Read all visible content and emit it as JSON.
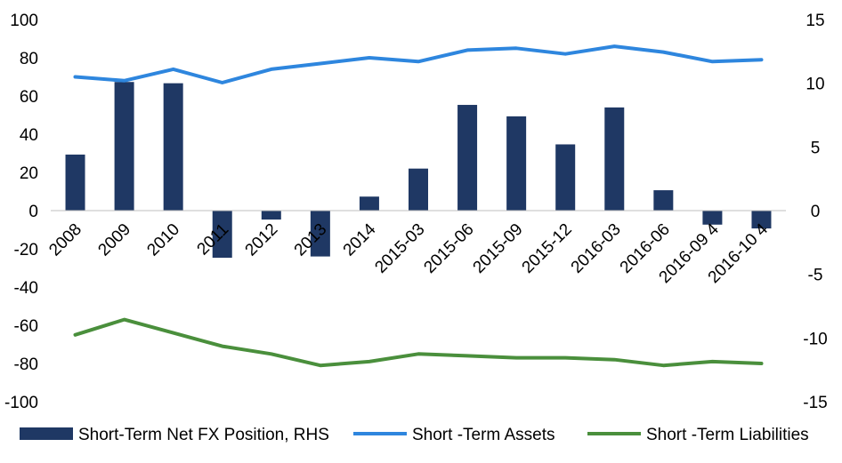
{
  "chart_data": {
    "type": "bar+line",
    "categories": [
      "2008",
      "2009",
      "2010",
      "2011",
      "2012",
      "2013",
      "2014",
      "2015-03",
      "2015-06",
      "2015-09",
      "2015-12",
      "2016-03",
      "2016-06",
      "2016-09 4",
      "2016-10 4"
    ],
    "left_axis": {
      "min": -100,
      "max": 100,
      "ticks": [
        100,
        80,
        60,
        40,
        20,
        0,
        -20,
        -40,
        -60,
        -80,
        -100
      ]
    },
    "right_axis": {
      "min": -15,
      "max": 15,
      "ticks": [
        15,
        10,
        5,
        0,
        -5,
        -10,
        -15
      ]
    },
    "series": [
      {
        "name": "Short-Term Net FX Position, RHS",
        "kind": "bar",
        "axis": "right",
        "color": "#1f3864",
        "values": [
          4.4,
          10.1,
          10.0,
          -3.7,
          -0.7,
          -3.6,
          1.1,
          3.3,
          8.3,
          7.4,
          5.2,
          8.1,
          1.6,
          -1.1,
          -1.4
        ]
      },
      {
        "name": "Short -Term Assets",
        "kind": "line",
        "axis": "left",
        "color": "#2e86de",
        "values": [
          70,
          68,
          74,
          67,
          74,
          77,
          80,
          78,
          84,
          85,
          82,
          86,
          83,
          78,
          79
        ]
      },
      {
        "name": "Short -Term Liabilities",
        "kind": "line",
        "axis": "left",
        "color": "#4a8f3c",
        "values": [
          -65,
          -57,
          -64,
          -71,
          -75,
          -81,
          -79,
          -75,
          -76,
          -77,
          -77,
          -78,
          -81,
          -79,
          -80
        ]
      }
    ],
    "legend_position": "bottom",
    "grid": false
  }
}
